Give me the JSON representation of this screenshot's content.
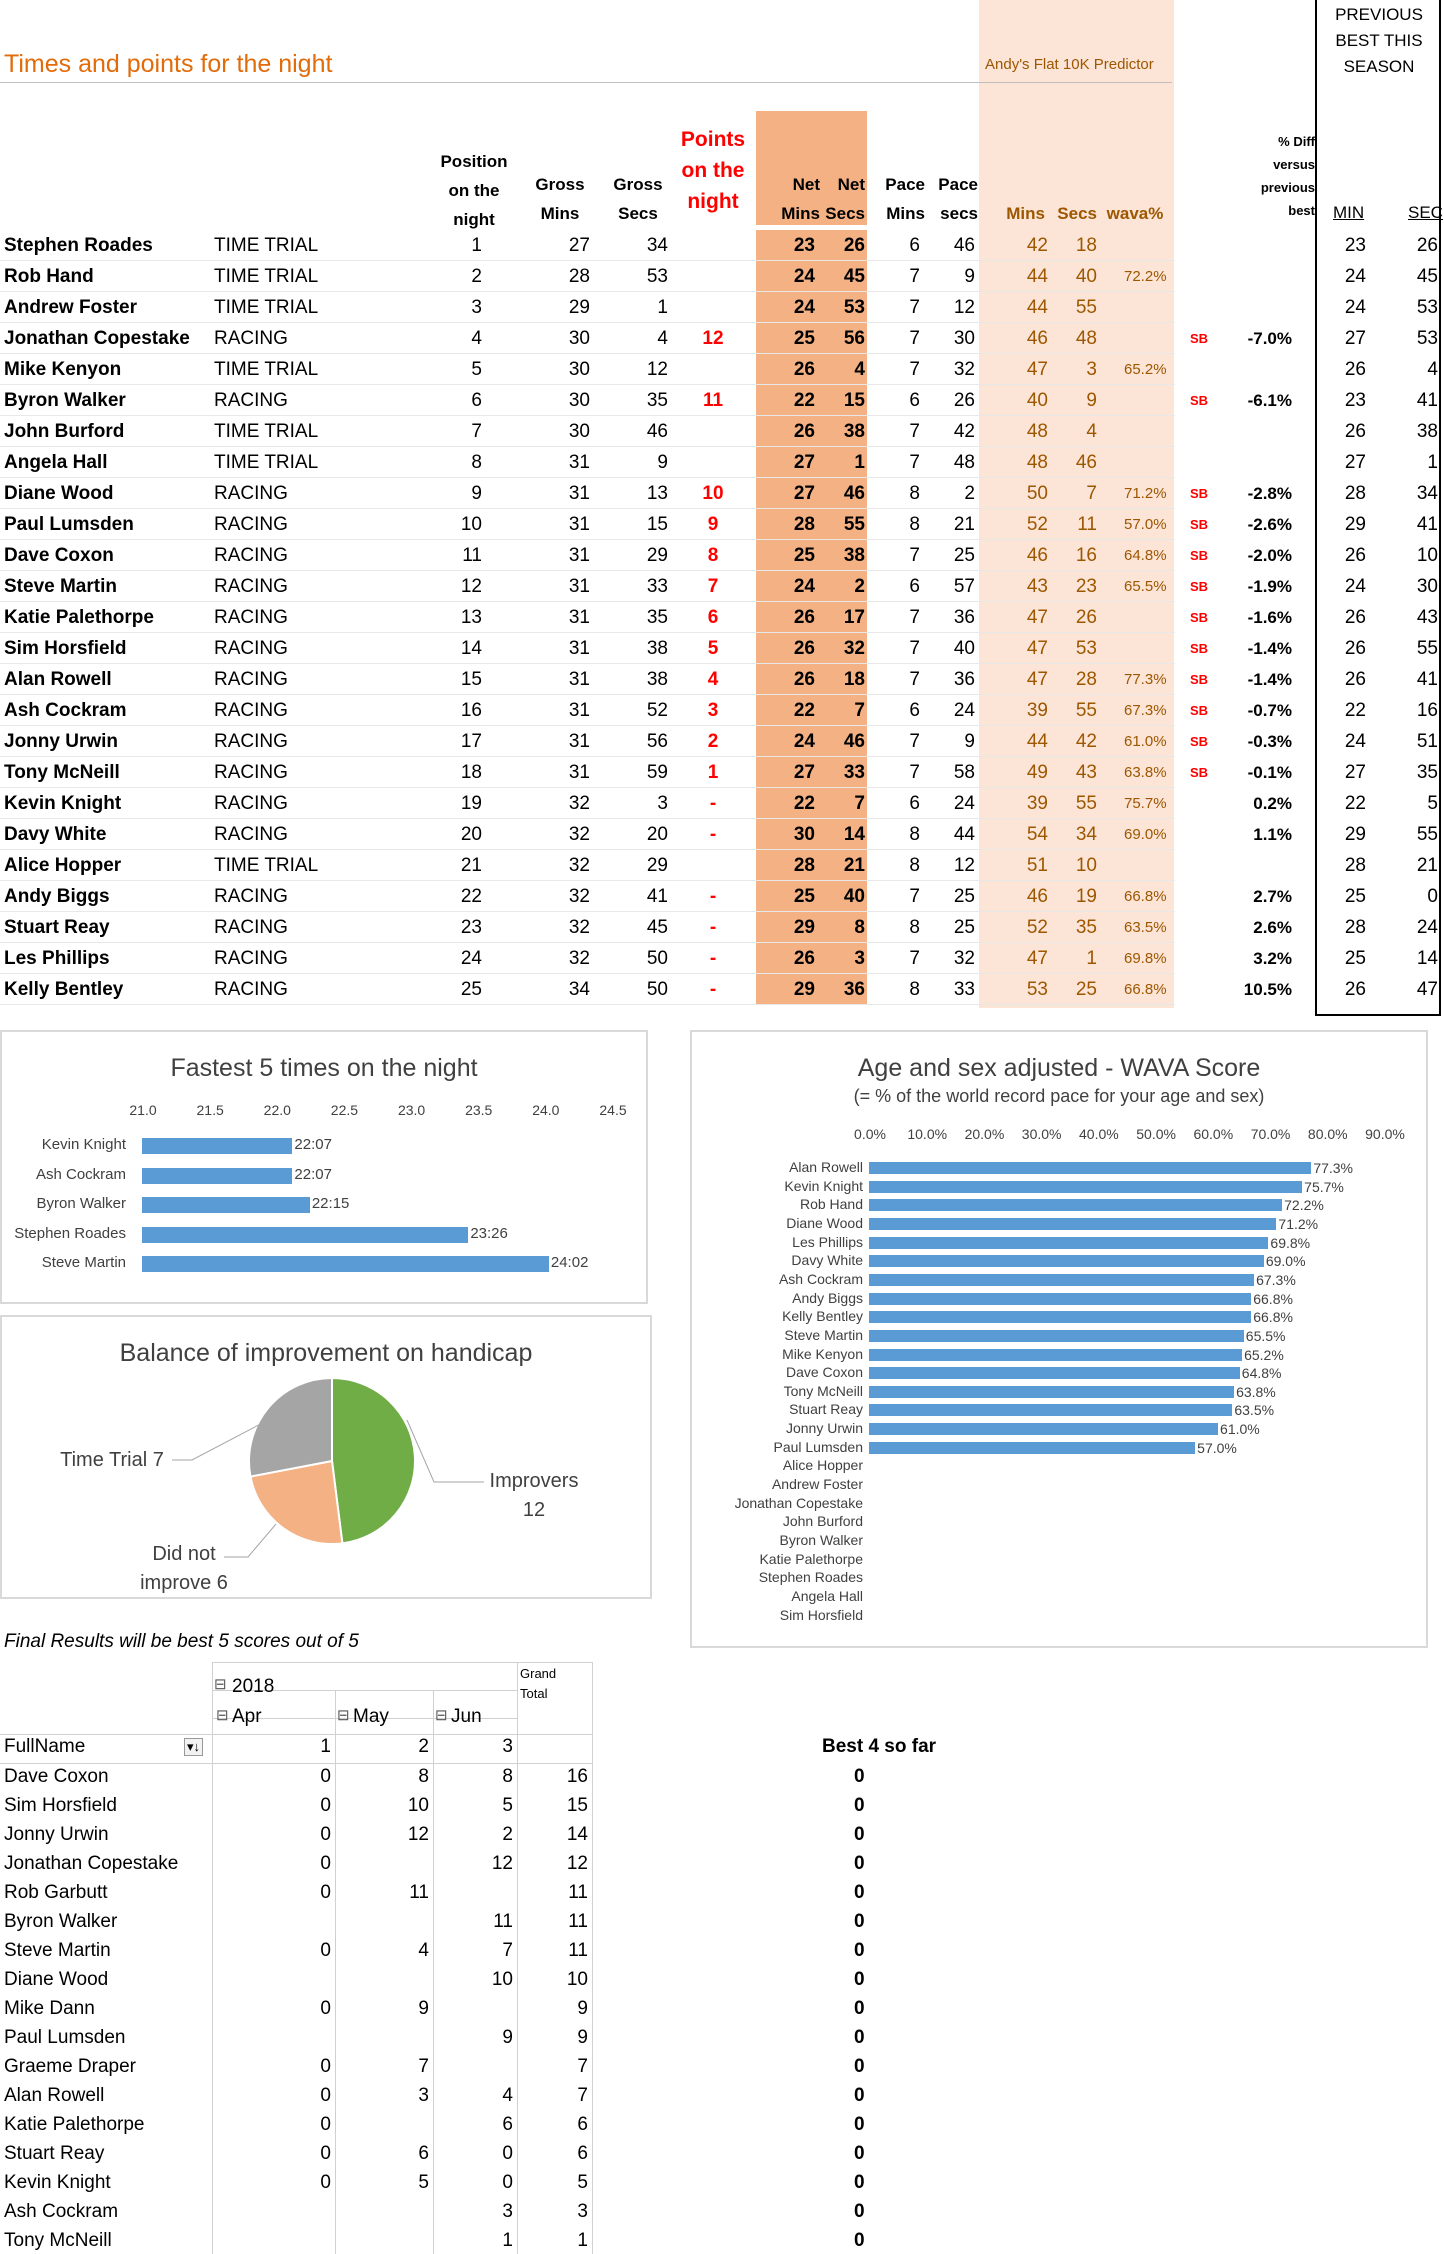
{
  "title": "Times and points for the night",
  "predictor_label": "Andy's Flat 10K Predictor",
  "previous_best_title": [
    "PREVIOUS",
    "BEST THIS",
    "SEASON"
  ],
  "headers": {
    "position": [
      "Position",
      "on the",
      "night"
    ],
    "gross_mins": [
      "Gross",
      "Mins"
    ],
    "gross_secs": [
      "Gross",
      "Secs"
    ],
    "points": [
      "Points",
      "on the",
      "night"
    ],
    "net_mins": [
      "Net",
      "Mins"
    ],
    "net_secs": [
      "Net",
      "Secs"
    ],
    "pace_mins": [
      "Pace",
      "Mins"
    ],
    "pace_secs": [
      "Pace",
      "secs"
    ],
    "pred_mins": "Mins",
    "pred_secs": "Secs",
    "wava": "wava%",
    "pct_diff": [
      "% Diff",
      "versus",
      "previous",
      "best"
    ],
    "prev_min": "MIN",
    "prev_sec": "SEC"
  },
  "results": [
    {
      "name": "Stephen Roades",
      "type": "TIME TRIAL",
      "pos": "1",
      "gm": "27",
      "gs": "34",
      "pts": "",
      "nm": "23",
      "ns": "26",
      "pm": "6",
      "ps": "46",
      "predm": "42",
      "preds": "18",
      "wava": "",
      "sb": "",
      "diff": "",
      "bm": "23",
      "bs": "26"
    },
    {
      "name": "Rob Hand",
      "type": "TIME TRIAL",
      "pos": "2",
      "gm": "28",
      "gs": "53",
      "pts": "",
      "nm": "24",
      "ns": "45",
      "pm": "7",
      "ps": "9",
      "predm": "44",
      "preds": "40",
      "wava": "72.2%",
      "sb": "",
      "diff": "",
      "bm": "24",
      "bs": "45"
    },
    {
      "name": "Andrew Foster",
      "type": "TIME TRIAL",
      "pos": "3",
      "gm": "29",
      "gs": "1",
      "pts": "",
      "nm": "24",
      "ns": "53",
      "pm": "7",
      "ps": "12",
      "predm": "44",
      "preds": "55",
      "wava": "",
      "sb": "",
      "diff": "",
      "bm": "24",
      "bs": "53"
    },
    {
      "name": "Jonathan Copestake",
      "type": "RACING",
      "pos": "4",
      "gm": "30",
      "gs": "4",
      "pts": "12",
      "nm": "25",
      "ns": "56",
      "pm": "7",
      "ps": "30",
      "predm": "46",
      "preds": "48",
      "wava": "",
      "sb": "SB",
      "diff": "-7.0%",
      "bm": "27",
      "bs": "53"
    },
    {
      "name": "Mike Kenyon",
      "type": "TIME TRIAL",
      "pos": "5",
      "gm": "30",
      "gs": "12",
      "pts": "",
      "nm": "26",
      "ns": "4",
      "pm": "7",
      "ps": "32",
      "predm": "47",
      "preds": "3",
      "wava": "65.2%",
      "sb": "",
      "diff": "",
      "bm": "26",
      "bs": "4"
    },
    {
      "name": "Byron Walker",
      "type": "RACING",
      "pos": "6",
      "gm": "30",
      "gs": "35",
      "pts": "11",
      "nm": "22",
      "ns": "15",
      "pm": "6",
      "ps": "26",
      "predm": "40",
      "preds": "9",
      "wava": "",
      "sb": "SB",
      "diff": "-6.1%",
      "bm": "23",
      "bs": "41"
    },
    {
      "name": "John Burford",
      "type": "TIME TRIAL",
      "pos": "7",
      "gm": "30",
      "gs": "46",
      "pts": "",
      "nm": "26",
      "ns": "38",
      "pm": "7",
      "ps": "42",
      "predm": "48",
      "preds": "4",
      "wava": "",
      "sb": "",
      "diff": "",
      "bm": "26",
      "bs": "38"
    },
    {
      "name": "Angela Hall",
      "type": "TIME TRIAL",
      "pos": "8",
      "gm": "31",
      "gs": "9",
      "pts": "",
      "nm": "27",
      "ns": "1",
      "pm": "7",
      "ps": "48",
      "predm": "48",
      "preds": "46",
      "wava": "",
      "sb": "",
      "diff": "",
      "bm": "27",
      "bs": "1"
    },
    {
      "name": "Diane Wood",
      "type": "RACING",
      "pos": "9",
      "gm": "31",
      "gs": "13",
      "pts": "10",
      "nm": "27",
      "ns": "46",
      "pm": "8",
      "ps": "2",
      "predm": "50",
      "preds": "7",
      "wava": "71.2%",
      "sb": "SB",
      "diff": "-2.8%",
      "bm": "28",
      "bs": "34"
    },
    {
      "name": "Paul Lumsden",
      "type": "RACING",
      "pos": "10",
      "gm": "31",
      "gs": "15",
      "pts": "9",
      "nm": "28",
      "ns": "55",
      "pm": "8",
      "ps": "21",
      "predm": "52",
      "preds": "11",
      "wava": "57.0%",
      "sb": "SB",
      "diff": "-2.6%",
      "bm": "29",
      "bs": "41"
    },
    {
      "name": "Dave Coxon",
      "type": "RACING",
      "pos": "11",
      "gm": "31",
      "gs": "29",
      "pts": "8",
      "nm": "25",
      "ns": "38",
      "pm": "7",
      "ps": "25",
      "predm": "46",
      "preds": "16",
      "wava": "64.8%",
      "sb": "SB",
      "diff": "-2.0%",
      "bm": "26",
      "bs": "10"
    },
    {
      "name": "Steve Martin",
      "type": "RACING",
      "pos": "12",
      "gm": "31",
      "gs": "33",
      "pts": "7",
      "nm": "24",
      "ns": "2",
      "pm": "6",
      "ps": "57",
      "predm": "43",
      "preds": "23",
      "wava": "65.5%",
      "sb": "SB",
      "diff": "-1.9%",
      "bm": "24",
      "bs": "30"
    },
    {
      "name": "Katie Palethorpe",
      "type": "RACING",
      "pos": "13",
      "gm": "31",
      "gs": "35",
      "pts": "6",
      "nm": "26",
      "ns": "17",
      "pm": "7",
      "ps": "36",
      "predm": "47",
      "preds": "26",
      "wava": "",
      "sb": "SB",
      "diff": "-1.6%",
      "bm": "26",
      "bs": "43"
    },
    {
      "name": "Sim Horsfield",
      "type": "RACING",
      "pos": "14",
      "gm": "31",
      "gs": "38",
      "pts": "5",
      "nm": "26",
      "ns": "32",
      "pm": "7",
      "ps": "40",
      "predm": "47",
      "preds": "53",
      "wava": "",
      "sb": "SB",
      "diff": "-1.4%",
      "bm": "26",
      "bs": "55"
    },
    {
      "name": "Alan Rowell",
      "type": "RACING",
      "pos": "15",
      "gm": "31",
      "gs": "38",
      "pts": "4",
      "nm": "26",
      "ns": "18",
      "pm": "7",
      "ps": "36",
      "predm": "47",
      "preds": "28",
      "wava": "77.3%",
      "sb": "SB",
      "diff": "-1.4%",
      "bm": "26",
      "bs": "41"
    },
    {
      "name": "Ash Cockram",
      "type": "RACING",
      "pos": "16",
      "gm": "31",
      "gs": "52",
      "pts": "3",
      "nm": "22",
      "ns": "7",
      "pm": "6",
      "ps": "24",
      "predm": "39",
      "preds": "55",
      "wava": "67.3%",
      "sb": "SB",
      "diff": "-0.7%",
      "bm": "22",
      "bs": "16"
    },
    {
      "name": "Jonny Urwin",
      "type": "RACING",
      "pos": "17",
      "gm": "31",
      "gs": "56",
      "pts": "2",
      "nm": "24",
      "ns": "46",
      "pm": "7",
      "ps": "9",
      "predm": "44",
      "preds": "42",
      "wava": "61.0%",
      "sb": "SB",
      "diff": "-0.3%",
      "bm": "24",
      "bs": "51"
    },
    {
      "name": "Tony McNeill",
      "type": "RACING",
      "pos": "18",
      "gm": "31",
      "gs": "59",
      "pts": "1",
      "nm": "27",
      "ns": "33",
      "pm": "7",
      "ps": "58",
      "predm": "49",
      "preds": "43",
      "wava": "63.8%",
      "sb": "SB",
      "diff": "-0.1%",
      "bm": "27",
      "bs": "35"
    },
    {
      "name": "Kevin Knight",
      "type": "RACING",
      "pos": "19",
      "gm": "32",
      "gs": "3",
      "pts": "-",
      "nm": "22",
      "ns": "7",
      "pm": "6",
      "ps": "24",
      "predm": "39",
      "preds": "55",
      "wava": "75.7%",
      "sb": "",
      "diff": "0.2%",
      "bm": "22",
      "bs": "5"
    },
    {
      "name": "Davy White",
      "type": "RACING",
      "pos": "20",
      "gm": "32",
      "gs": "20",
      "pts": "-",
      "nm": "30",
      "ns": "14",
      "pm": "8",
      "ps": "44",
      "predm": "54",
      "preds": "34",
      "wava": "69.0%",
      "sb": "",
      "diff": "1.1%",
      "bm": "29",
      "bs": "55"
    },
    {
      "name": "Alice Hopper",
      "type": "TIME TRIAL",
      "pos": "21",
      "gm": "32",
      "gs": "29",
      "pts": "",
      "nm": "28",
      "ns": "21",
      "pm": "8",
      "ps": "12",
      "predm": "51",
      "preds": "10",
      "wava": "",
      "sb": "",
      "diff": "",
      "bm": "28",
      "bs": "21"
    },
    {
      "name": "Andy Biggs",
      "type": "RACING",
      "pos": "22",
      "gm": "32",
      "gs": "41",
      "pts": "-",
      "nm": "25",
      "ns": "40",
      "pm": "7",
      "ps": "25",
      "predm": "46",
      "preds": "19",
      "wava": "66.8%",
      "sb": "",
      "diff": "2.7%",
      "bm": "25",
      "bs": "0"
    },
    {
      "name": "Stuart Reay",
      "type": "RACING",
      "pos": "23",
      "gm": "32",
      "gs": "45",
      "pts": "-",
      "nm": "29",
      "ns": "8",
      "pm": "8",
      "ps": "25",
      "predm": "52",
      "preds": "35",
      "wava": "63.5%",
      "sb": "",
      "diff": "2.6%",
      "bm": "28",
      "bs": "24"
    },
    {
      "name": "Les Phillips",
      "type": "RACING",
      "pos": "24",
      "gm": "32",
      "gs": "50",
      "pts": "-",
      "nm": "26",
      "ns": "3",
      "pm": "7",
      "ps": "32",
      "predm": "47",
      "preds": "1",
      "wava": "69.8%",
      "sb": "",
      "diff": "3.2%",
      "bm": "25",
      "bs": "14"
    },
    {
      "name": "Kelly Bentley",
      "type": "RACING",
      "pos": "25",
      "gm": "34",
      "gs": "50",
      "pts": "-",
      "nm": "29",
      "ns": "36",
      "pm": "8",
      "ps": "33",
      "predm": "53",
      "preds": "25",
      "wava": "66.8%",
      "sb": "",
      "diff": "10.5%",
      "bm": "26",
      "bs": "47"
    }
  ],
  "chart_data": [
    {
      "type": "bar",
      "title": "Fastest 5 times on the night",
      "categories": [
        "Kevin Knight",
        "Ash Cockram",
        "Byron Walker",
        "Stephen Roades",
        "Steve Martin"
      ],
      "values": [
        22.12,
        22.12,
        22.25,
        23.43,
        24.03
      ],
      "data_labels": [
        "22:07",
        "22:07",
        "22:15",
        "23:26",
        "24:02"
      ],
      "xlim": [
        21.0,
        24.5
      ],
      "xticks": [
        "21.0",
        "21.5",
        "22.0",
        "22.5",
        "23.0",
        "23.5",
        "24.0",
        "24.5"
      ]
    },
    {
      "type": "bar",
      "title": "Age and sex adjusted - WAVA Score",
      "subtitle": "(= % of the world record pace for your age and sex)",
      "categories": [
        "Alan Rowell",
        "Kevin Knight",
        "Rob Hand",
        "Diane Wood",
        "Les Phillips",
        "Davy White",
        "Ash Cockram",
        "Andy Biggs",
        "Kelly Bentley",
        "Steve Martin",
        "Mike Kenyon",
        "Dave Coxon",
        "Tony McNeill",
        "Stuart Reay",
        "Jonny Urwin",
        "Paul Lumsden",
        "Alice Hopper",
        "Andrew Foster",
        "Jonathan Copestake",
        "John Burford",
        "Byron Walker",
        "Katie Palethorpe",
        "Stephen Roades",
        "Angela Hall",
        "Sim Horsfield"
      ],
      "values": [
        77.3,
        75.7,
        72.2,
        71.2,
        69.8,
        69.0,
        67.3,
        66.8,
        66.8,
        65.5,
        65.2,
        64.8,
        63.8,
        63.5,
        61.0,
        57.0,
        null,
        null,
        null,
        null,
        null,
        null,
        null,
        null,
        null
      ],
      "data_labels": [
        "77.3%",
        "75.7%",
        "72.2%",
        "71.2%",
        "69.8%",
        "69.0%",
        "67.3%",
        "66.8%",
        "66.8%",
        "65.5%",
        "65.2%",
        "64.8%",
        "63.8%",
        "63.5%",
        "61.0%",
        "57.0%",
        "",
        "",
        "",
        "",
        "",
        "",
        "",
        "",
        ""
      ],
      "xlim": [
        0,
        90
      ],
      "xticks": [
        "0.0%",
        "10.0%",
        "20.0%",
        "30.0%",
        "40.0%",
        "50.0%",
        "60.0%",
        "70.0%",
        "80.0%",
        "90.0%"
      ]
    },
    {
      "type": "pie",
      "title": "Balance of improvement on handicap",
      "labels": [
        "Improvers",
        "Did not improve",
        "Time Trial"
      ],
      "values": [
        12,
        6,
        7
      ],
      "label_text": [
        "Improvers 12",
        "Did not improve 6",
        "Time Trial 7"
      ],
      "colors": [
        "#70ad47",
        "#f4b183",
        "#a5a5a5"
      ]
    }
  ],
  "final_note": "Final Results will be best 5 scores out of 5",
  "pivot": {
    "grand_total_label": [
      "Grand",
      "Total"
    ],
    "year": "2018",
    "months": [
      "Apr",
      "May",
      "Jun"
    ],
    "row_header": "FullName",
    "col_numbers": [
      "1",
      "2",
      "3"
    ],
    "best_label": "Best 4 so far",
    "rows": [
      {
        "name": "Dave Coxon",
        "apr": "0",
        "may": "8",
        "jun": "8",
        "total": "16",
        "best": "0"
      },
      {
        "name": "Sim Horsfield",
        "apr": "0",
        "may": "10",
        "jun": "5",
        "total": "15",
        "best": "0"
      },
      {
        "name": "Jonny Urwin",
        "apr": "0",
        "may": "12",
        "jun": "2",
        "total": "14",
        "best": "0"
      },
      {
        "name": "Jonathan Copestake",
        "apr": "0",
        "may": "",
        "jun": "12",
        "total": "12",
        "best": "0"
      },
      {
        "name": "Rob Garbutt",
        "apr": "0",
        "may": "11",
        "jun": "",
        "total": "11",
        "best": "0"
      },
      {
        "name": "Byron Walker",
        "apr": "",
        "may": "",
        "jun": "11",
        "total": "11",
        "best": "0"
      },
      {
        "name": "Steve Martin",
        "apr": "0",
        "may": "4",
        "jun": "7",
        "total": "11",
        "best": "0"
      },
      {
        "name": "Diane Wood",
        "apr": "",
        "may": "",
        "jun": "10",
        "total": "10",
        "best": "0"
      },
      {
        "name": "Mike Dann",
        "apr": "0",
        "may": "9",
        "jun": "",
        "total": "9",
        "best": "0"
      },
      {
        "name": "Paul Lumsden",
        "apr": "",
        "may": "",
        "jun": "9",
        "total": "9",
        "best": "0"
      },
      {
        "name": "Graeme Draper",
        "apr": "0",
        "may": "7",
        "jun": "",
        "total": "7",
        "best": "0"
      },
      {
        "name": "Alan Rowell",
        "apr": "0",
        "may": "3",
        "jun": "4",
        "total": "7",
        "best": "0"
      },
      {
        "name": "Katie Palethorpe",
        "apr": "0",
        "may": "",
        "jun": "6",
        "total": "6",
        "best": "0"
      },
      {
        "name": "Stuart Reay",
        "apr": "0",
        "may": "6",
        "jun": "0",
        "total": "6",
        "best": "0"
      },
      {
        "name": "Kevin Knight",
        "apr": "0",
        "may": "5",
        "jun": "0",
        "total": "5",
        "best": "0"
      },
      {
        "name": "Ash Cockram",
        "apr": "",
        "may": "",
        "jun": "3",
        "total": "3",
        "best": "0"
      },
      {
        "name": "Tony McNeill",
        "apr": "",
        "may": "",
        "jun": "1",
        "total": "1",
        "best": "0"
      }
    ]
  }
}
